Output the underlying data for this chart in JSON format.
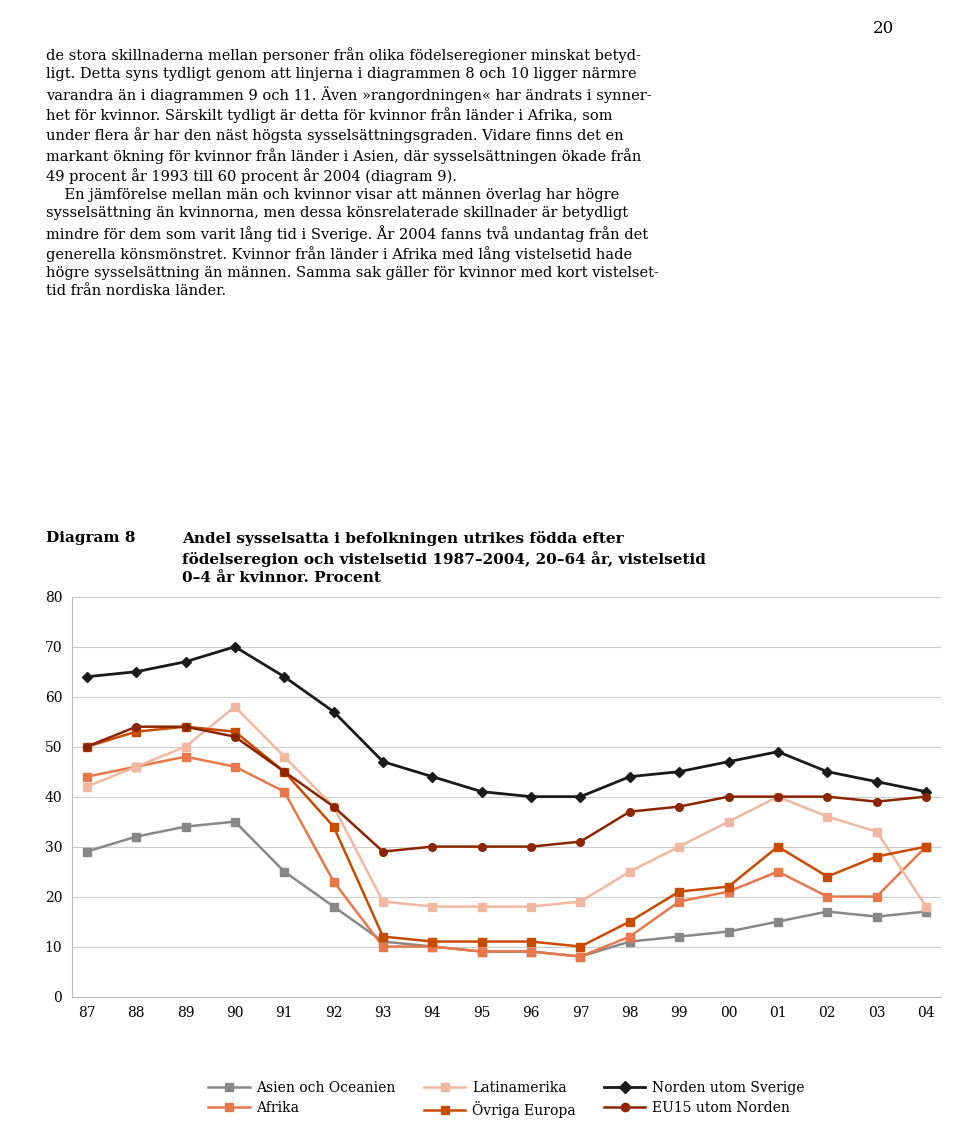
{
  "years": [
    87,
    88,
    89,
    90,
    91,
    92,
    93,
    94,
    95,
    96,
    97,
    98,
    99,
    0,
    1,
    2,
    3,
    4
  ],
  "series": {
    "Asien och Oceanien": {
      "values": [
        29,
        32,
        34,
        35,
        25,
        18,
        11,
        10,
        9,
        9,
        8,
        11,
        12,
        13,
        15,
        17,
        16,
        17
      ],
      "color": "#888888",
      "marker": "s",
      "linewidth": 1.8
    },
    "Afrika": {
      "values": [
        44,
        46,
        48,
        46,
        41,
        23,
        10,
        10,
        9,
        9,
        8,
        12,
        19,
        21,
        25,
        20,
        20,
        30
      ],
      "color": "#E8784A",
      "marker": "s",
      "linewidth": 1.8
    },
    "Latinamerika": {
      "values": [
        42,
        46,
        50,
        58,
        48,
        38,
        19,
        18,
        18,
        18,
        19,
        25,
        30,
        35,
        40,
        36,
        33,
        18
      ],
      "color": "#F0B8A0",
      "marker": "s",
      "linewidth": 1.8
    },
    "Övriga Europa": {
      "values": [
        50,
        53,
        54,
        53,
        45,
        34,
        12,
        11,
        11,
        11,
        10,
        15,
        21,
        22,
        30,
        24,
        28,
        30
      ],
      "color": "#C84B00",
      "marker": "s",
      "linewidth": 1.8
    },
    "Norden utom Sverige": {
      "values": [
        64,
        65,
        67,
        70,
        64,
        57,
        47,
        44,
        41,
        40,
        40,
        44,
        45,
        47,
        49,
        45,
        43,
        41
      ],
      "color": "#1A1A1A",
      "marker": "D",
      "linewidth": 2.0
    },
    "EU15 utom Norden": {
      "values": [
        50,
        54,
        54,
        52,
        45,
        38,
        29,
        30,
        30,
        30,
        31,
        37,
        38,
        40,
        40,
        40,
        39,
        40
      ],
      "color": "#8B2500",
      "marker": "o",
      "linewidth": 1.8
    }
  },
  "title_label": "Diagram 8",
  "title_text": "Andel sysselsatta i befolkningen utrikes födda efter\nfödelseregion och vistelsetid 1987–2004, 20–64 år, vistelsetid\n0–4 år kvinnor. Procent",
  "body_text_lines": [
    "de stora skillnaderna mellan personer från olika födelseregioner minskat betyd-",
    "ligt. Detta syns tydligt genom att linjerna i diagrammen 8 och 10 ligger närmre",
    "varandra än i diagrammen 9 och 11. Även »rangordningen« har ändrats i synner-",
    "het för kvinnor. Särskilt tydligt är detta för kvinnor från länder i Afrika, som",
    "under flera år har den näst högsta sysselsättningsgraden. Vidare finns det en",
    "markant ökning för kvinnor från länder i Asien, där sysselsättningen ökade från",
    "49 procent år 1993 till 60 procent år 2004 (diagram 9).",
    "    En jämförelse mellan män och kvinnor visar att männen överlag har högre",
    "sysselsättning än kvinnorna, men dessa könsrelaterade skillnader är betydligt",
    "mindre för dem som varit lång tid i Sverige. År 2004 fanns två undantag från det",
    "generella könsmönstret. Kvinnor från länder i Afrika med lång vistelsetid hade",
    "högre sysselsättning än männen. Samma sak gäller för kvinnor med kort vistelset-",
    "tid från nordiska länder."
  ],
  "page_number": "20",
  "ylim": [
    0,
    80
  ],
  "yticks": [
    0,
    10,
    20,
    30,
    40,
    50,
    60,
    70,
    80
  ],
  "xtick_labels": [
    "87",
    "88",
    "89",
    "90",
    "91",
    "92",
    "93",
    "94",
    "95",
    "96",
    "97",
    "98",
    "99",
    "00",
    "01",
    "02",
    "03",
    "04"
  ],
  "background_color": "#ffffff",
  "legend_rows": [
    [
      "Asien och Oceanien",
      "Afrika",
      "Latinamerika"
    ],
    [
      "Övriga Europa",
      "Norden utom Sverige",
      "EU15 utom Norden"
    ]
  ]
}
